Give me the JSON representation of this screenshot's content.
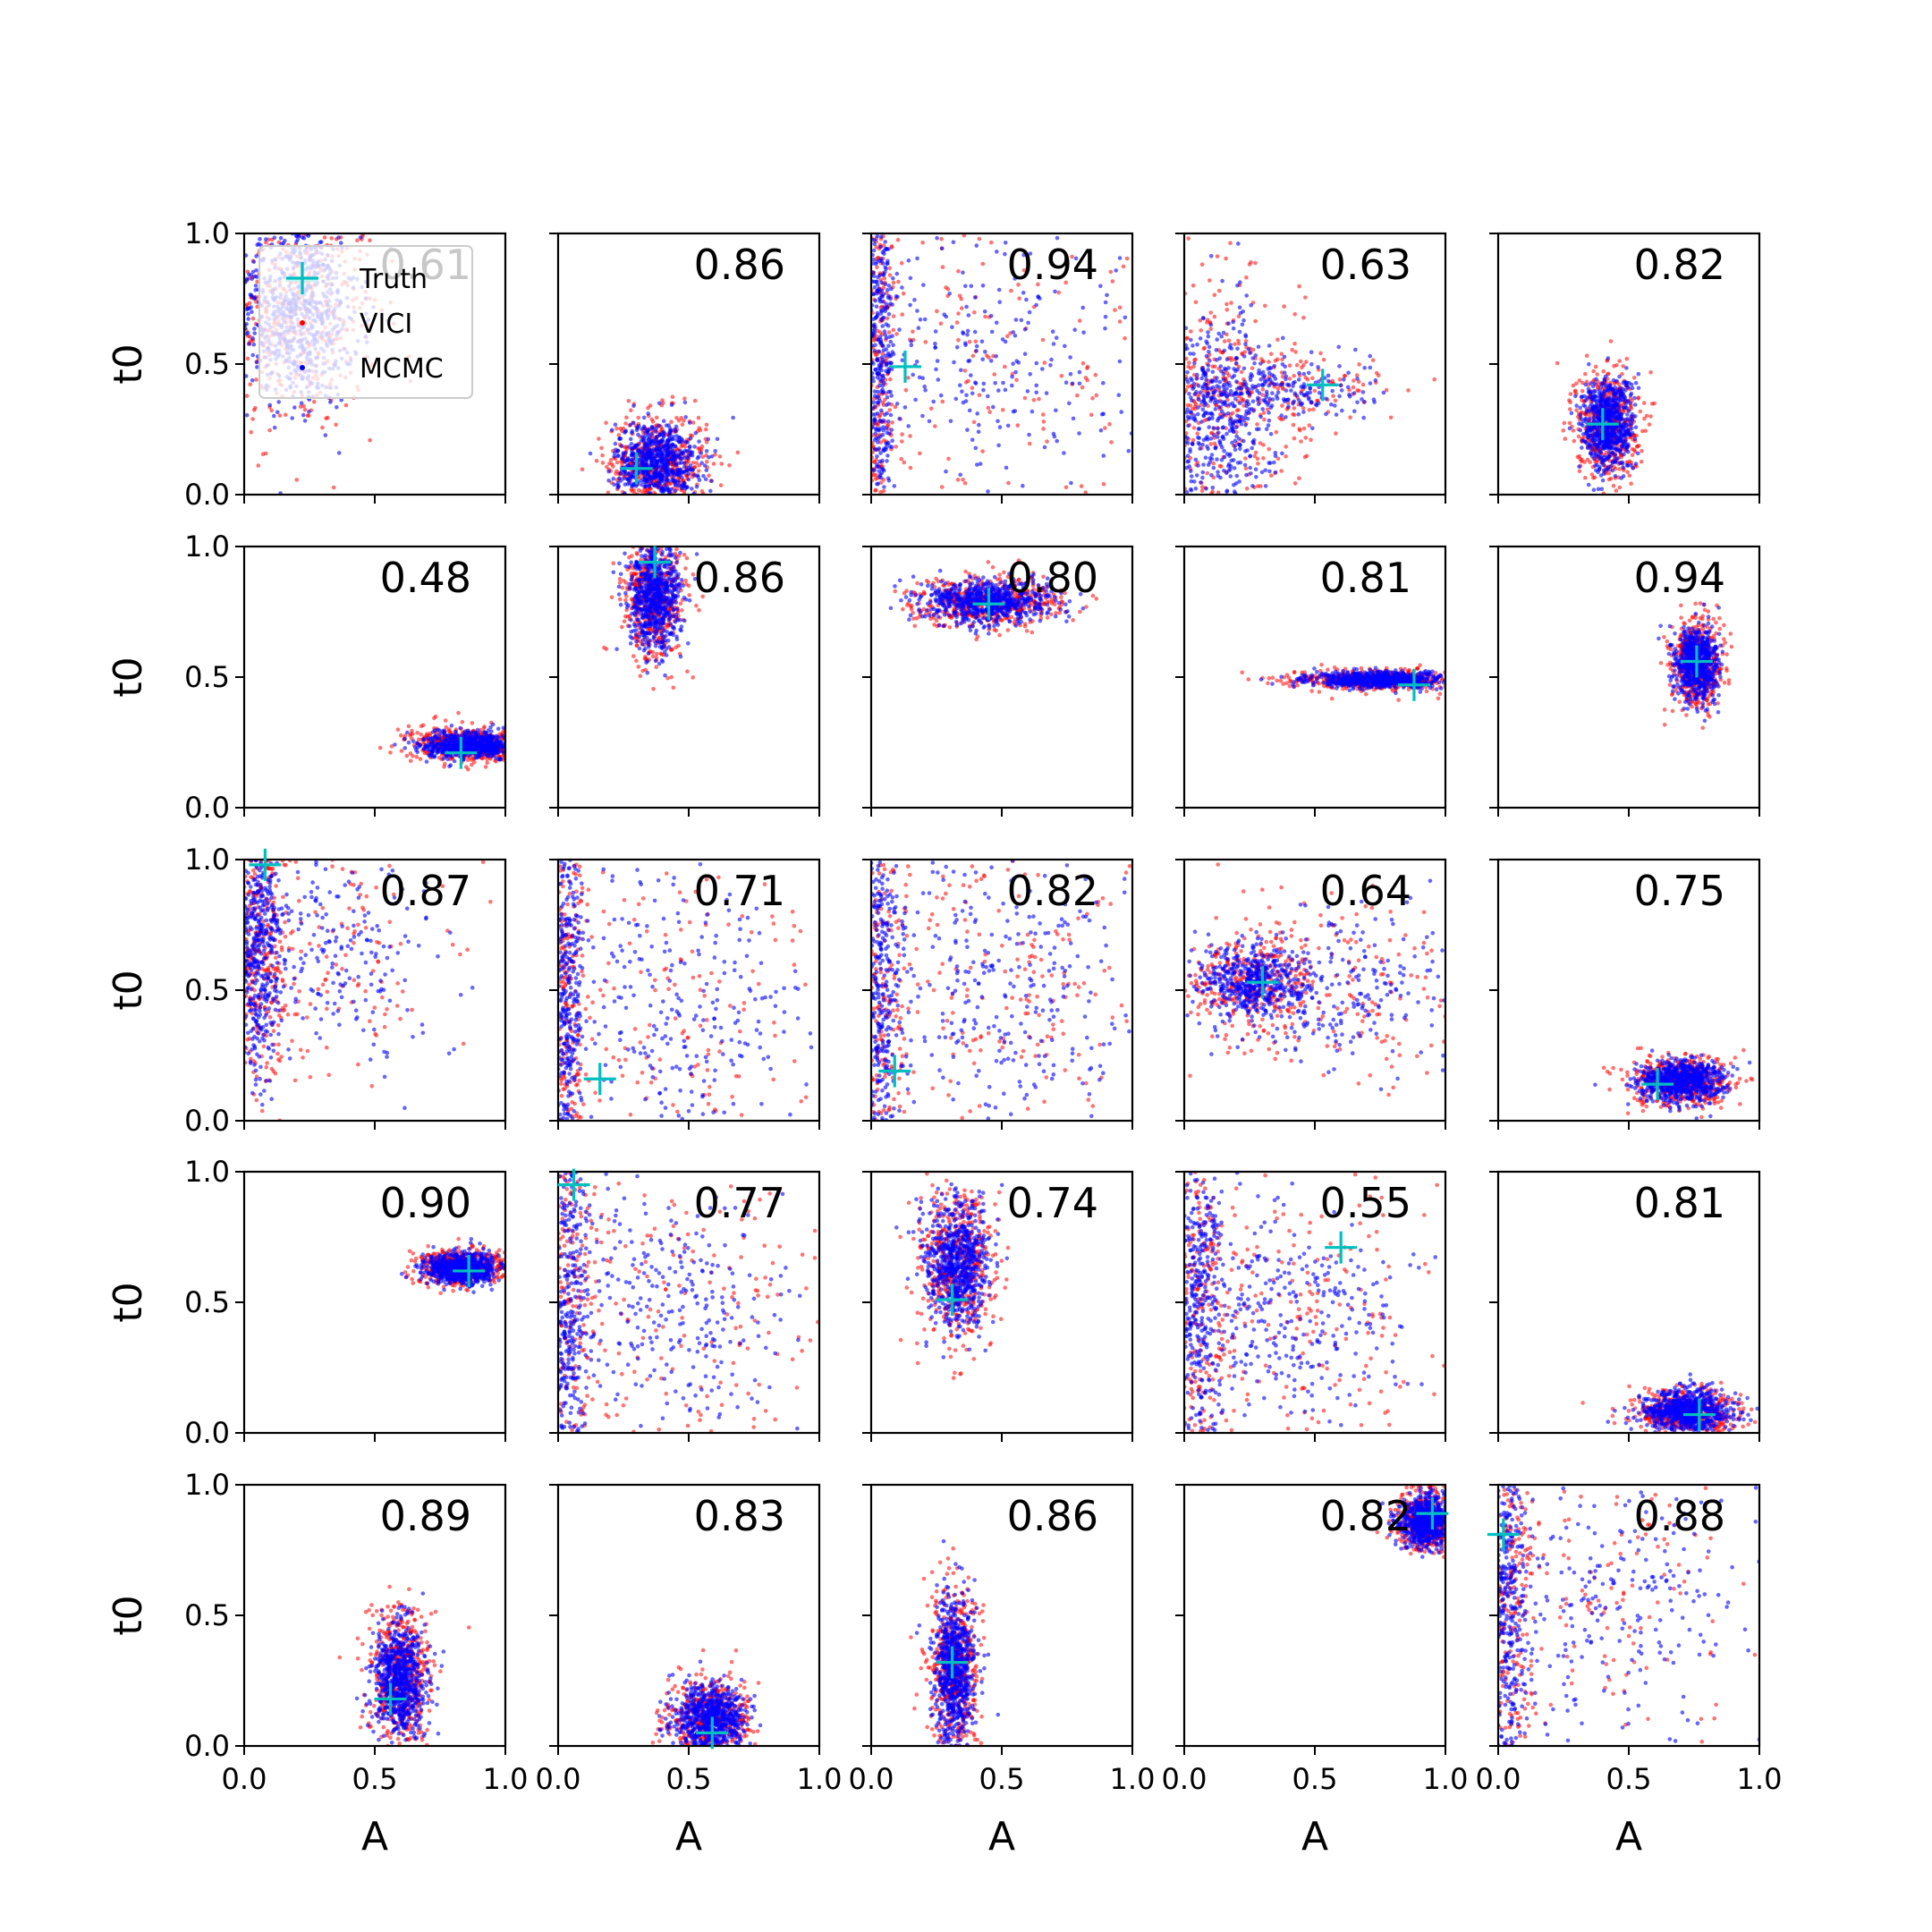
{
  "chart_data": {
    "type": "scatter",
    "layout": {
      "rows": 5,
      "cols": 5
    },
    "xlabel": "A",
    "ylabel": "t0",
    "xlim": [
      0.0,
      1.0
    ],
    "ylim": [
      0.0,
      1.0
    ],
    "x_ticks": [
      "0.0",
      "0.5",
      "1.0"
    ],
    "y_ticks": [
      "0.0",
      "0.5",
      "1.0"
    ],
    "legend": {
      "placement": "top-left",
      "entries": [
        {
          "label": "Truth",
          "marker": "plus",
          "color": "#00BFBF"
        },
        {
          "label": "VICI",
          "marker": "dot",
          "color": "#FF0000"
        },
        {
          "label": "MCMC",
          "marker": "dot",
          "color": "#0000FF"
        }
      ]
    },
    "colors": {
      "vici": "#FF0000",
      "mcmc": "#0000FF",
      "truth": "#00BFBF"
    },
    "panels": [
      {
        "value": "0.61",
        "truth": [
          0.22,
          0.82
        ],
        "blobs": [
          {
            "cx": 0.2,
            "cy": 0.7,
            "sx": 0.12,
            "sy": 0.18,
            "share": 1
          }
        ],
        "vici_spread": 1.3
      },
      {
        "value": "0.86",
        "truth": [
          0.3,
          0.1
        ],
        "blobs": [
          {
            "cx": 0.38,
            "cy": 0.12,
            "sx": 0.08,
            "sy": 0.08,
            "share": 1
          }
        ],
        "vici_spread": 1.2
      },
      {
        "value": "0.94",
        "truth": [
          0.13,
          0.49
        ],
        "blobs": [
          {
            "cx": 0.03,
            "cy": 0.5,
            "sx": 0.03,
            "sy": 0.4,
            "share": 0.6
          },
          {
            "cx": 0.45,
            "cy": 0.5,
            "sx": 0.3,
            "sy": 0.3,
            "share": 0.4
          }
        ],
        "vici_spread": 1.3
      },
      {
        "value": "0.63",
        "truth": [
          0.53,
          0.42
        ],
        "blobs": [
          {
            "cx": 0.12,
            "cy": 0.3,
            "sx": 0.12,
            "sy": 0.2,
            "share": 0.7
          },
          {
            "cx": 0.35,
            "cy": 0.4,
            "sx": 0.18,
            "sy": 0.06,
            "share": 0.3
          }
        ],
        "vici_spread": 1.4
      },
      {
        "value": "0.82",
        "truth": [
          0.4,
          0.27
        ],
        "blobs": [
          {
            "cx": 0.42,
            "cy": 0.27,
            "sx": 0.05,
            "sy": 0.09,
            "share": 1
          }
        ],
        "vici_spread": 1.2
      },
      {
        "value": "0.48",
        "truth": [
          0.83,
          0.21
        ],
        "blobs": [
          {
            "cx": 0.87,
            "cy": 0.24,
            "sx": 0.09,
            "sy": 0.025,
            "share": 1
          }
        ],
        "vici_spread": 1.3
      },
      {
        "value": "0.86",
        "truth": [
          0.37,
          0.94
        ],
        "blobs": [
          {
            "cx": 0.37,
            "cy": 0.8,
            "sx": 0.05,
            "sy": 0.1,
            "share": 1
          }
        ],
        "vici_spread": 1.2
      },
      {
        "value": "0.80",
        "truth": [
          0.45,
          0.78
        ],
        "blobs": [
          {
            "cx": 0.45,
            "cy": 0.79,
            "sx": 0.12,
            "sy": 0.04,
            "share": 1
          }
        ],
        "vici_spread": 1.2
      },
      {
        "value": "0.81",
        "truth": [
          0.88,
          0.47
        ],
        "blobs": [
          {
            "cx": 0.75,
            "cy": 0.49,
            "sx": 0.13,
            "sy": 0.015,
            "share": 1
          }
        ],
        "vici_spread": 1.3
      },
      {
        "value": "0.94",
        "truth": [
          0.76,
          0.56
        ],
        "blobs": [
          {
            "cx": 0.76,
            "cy": 0.55,
            "sx": 0.04,
            "sy": 0.07,
            "share": 1
          }
        ],
        "vici_spread": 1.2
      },
      {
        "value": "0.87",
        "truth": [
          0.08,
          0.98
        ],
        "blobs": [
          {
            "cx": 0.05,
            "cy": 0.65,
            "sx": 0.05,
            "sy": 0.25,
            "share": 0.7
          },
          {
            "cx": 0.35,
            "cy": 0.65,
            "sx": 0.2,
            "sy": 0.2,
            "share": 0.3
          }
        ],
        "vici_spread": 1.3
      },
      {
        "value": "0.71",
        "truth": [
          0.16,
          0.16
        ],
        "blobs": [
          {
            "cx": 0.03,
            "cy": 0.5,
            "sx": 0.03,
            "sy": 0.4,
            "share": 0.6
          },
          {
            "cx": 0.45,
            "cy": 0.4,
            "sx": 0.28,
            "sy": 0.3,
            "share": 0.4
          }
        ],
        "vici_spread": 1.3
      },
      {
        "value": "0.82",
        "truth": [
          0.09,
          0.19
        ],
        "blobs": [
          {
            "cx": 0.04,
            "cy": 0.5,
            "sx": 0.04,
            "sy": 0.4,
            "share": 0.55
          },
          {
            "cx": 0.5,
            "cy": 0.5,
            "sx": 0.28,
            "sy": 0.28,
            "share": 0.45
          }
        ],
        "vici_spread": 1.3
      },
      {
        "value": "0.64",
        "truth": [
          0.3,
          0.53
        ],
        "blobs": [
          {
            "cx": 0.25,
            "cy": 0.53,
            "sx": 0.1,
            "sy": 0.07,
            "share": 0.6
          },
          {
            "cx": 0.5,
            "cy": 0.52,
            "sx": 0.25,
            "sy": 0.14,
            "share": 0.4
          }
        ],
        "vici_spread": 1.3
      },
      {
        "value": "0.75",
        "truth": [
          0.61,
          0.14
        ],
        "blobs": [
          {
            "cx": 0.7,
            "cy": 0.15,
            "sx": 0.08,
            "sy": 0.04,
            "share": 1
          }
        ],
        "vici_spread": 1.2
      },
      {
        "value": "0.90",
        "truth": [
          0.86,
          0.62
        ],
        "blobs": [
          {
            "cx": 0.83,
            "cy": 0.63,
            "sx": 0.07,
            "sy": 0.03,
            "share": 1
          }
        ],
        "vici_spread": 1.2
      },
      {
        "value": "0.77",
        "truth": [
          0.06,
          0.95
        ],
        "blobs": [
          {
            "cx": 0.04,
            "cy": 0.5,
            "sx": 0.04,
            "sy": 0.4,
            "share": 0.55
          },
          {
            "cx": 0.45,
            "cy": 0.5,
            "sx": 0.28,
            "sy": 0.28,
            "share": 0.45
          }
        ],
        "vici_spread": 1.3
      },
      {
        "value": "0.74",
        "truth": [
          0.31,
          0.51
        ],
        "blobs": [
          {
            "cx": 0.33,
            "cy": 0.65,
            "sx": 0.06,
            "sy": 0.12,
            "share": 1
          }
        ],
        "vici_spread": 1.2
      },
      {
        "value": "0.55",
        "truth": [
          0.6,
          0.71
        ],
        "blobs": [
          {
            "cx": 0.05,
            "cy": 0.55,
            "sx": 0.05,
            "sy": 0.35,
            "share": 0.55
          },
          {
            "cx": 0.4,
            "cy": 0.45,
            "sx": 0.25,
            "sy": 0.2,
            "share": 0.45
          }
        ],
        "vici_spread": 1.3
      },
      {
        "value": "0.81",
        "truth": [
          0.77,
          0.07
        ],
        "blobs": [
          {
            "cx": 0.72,
            "cy": 0.08,
            "sx": 0.08,
            "sy": 0.04,
            "share": 1
          }
        ],
        "vici_spread": 1.2
      },
      {
        "value": "0.89",
        "truth": [
          0.56,
          0.18
        ],
        "blobs": [
          {
            "cx": 0.6,
            "cy": 0.25,
            "sx": 0.05,
            "sy": 0.11,
            "share": 1
          }
        ],
        "vici_spread": 1.2
      },
      {
        "value": "0.83",
        "truth": [
          0.59,
          0.05
        ],
        "blobs": [
          {
            "cx": 0.58,
            "cy": 0.1,
            "sx": 0.07,
            "sy": 0.07,
            "share": 1
          }
        ],
        "vici_spread": 1.2
      },
      {
        "value": "0.86",
        "truth": [
          0.31,
          0.32
        ],
        "blobs": [
          {
            "cx": 0.32,
            "cy": 0.3,
            "sx": 0.04,
            "sy": 0.14,
            "share": 1
          }
        ],
        "vici_spread": 1.2
      },
      {
        "value": "0.82",
        "truth": [
          0.95,
          0.89
        ],
        "blobs": [
          {
            "cx": 0.93,
            "cy": 0.86,
            "sx": 0.05,
            "sy": 0.05,
            "share": 1
          }
        ],
        "vici_spread": 1.2
      },
      {
        "value": "0.88",
        "truth": [
          0.02,
          0.81
        ],
        "blobs": [
          {
            "cx": 0.03,
            "cy": 0.55,
            "sx": 0.04,
            "sy": 0.35,
            "share": 0.6
          },
          {
            "cx": 0.4,
            "cy": 0.6,
            "sx": 0.28,
            "sy": 0.28,
            "share": 0.4
          }
        ],
        "vici_spread": 1.3
      }
    ]
  }
}
